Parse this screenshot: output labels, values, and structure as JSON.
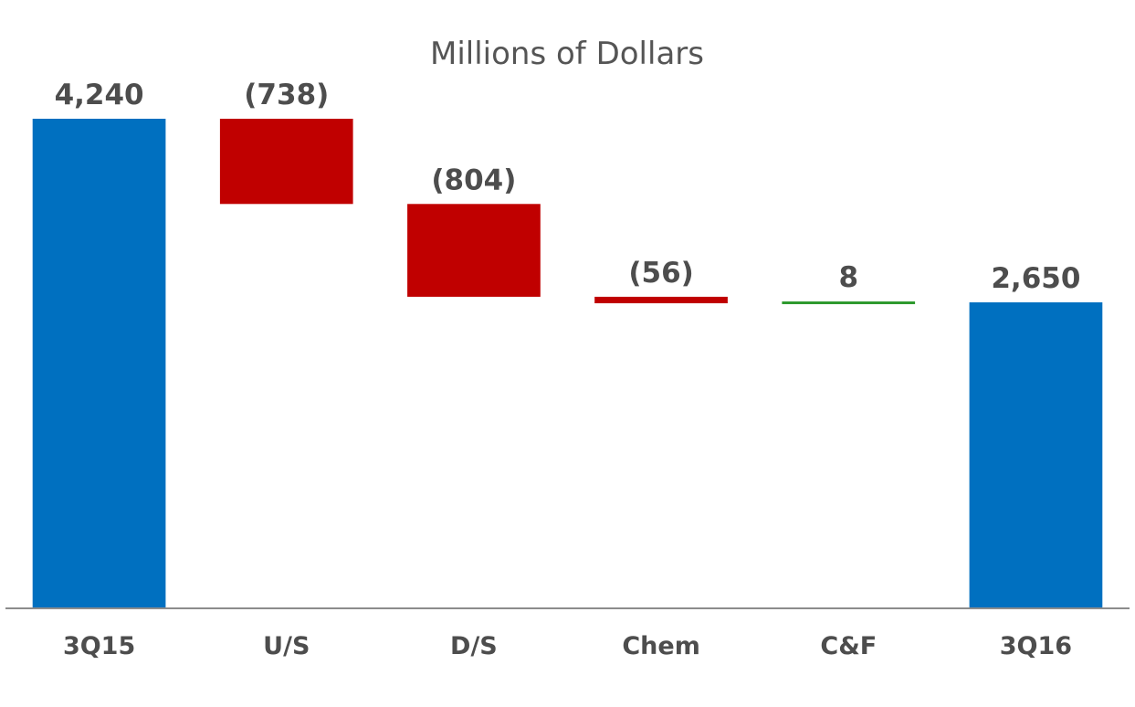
{
  "chart_data": {
    "type": "bar",
    "subtype": "waterfall",
    "title": "Millions of Dollars",
    "categories": [
      "3Q15",
      "U/S",
      "D/S",
      "Chem",
      "C&F",
      "3Q16"
    ],
    "values": [
      4240,
      -738,
      -804,
      -56,
      8,
      2650
    ],
    "kinds": [
      "total",
      "delta",
      "delta",
      "delta",
      "delta",
      "total"
    ],
    "data_labels": [
      "4,240",
      "(738)",
      "(804)",
      "(56)",
      "8",
      "2,650"
    ],
    "ylim": [
      0,
      4240
    ],
    "grid": false,
    "legend": "none",
    "colors": {
      "total": "#0070c0",
      "decrease": "#c00000",
      "increase": "#2e9a2e",
      "axis": "#8c8c8c"
    }
  }
}
